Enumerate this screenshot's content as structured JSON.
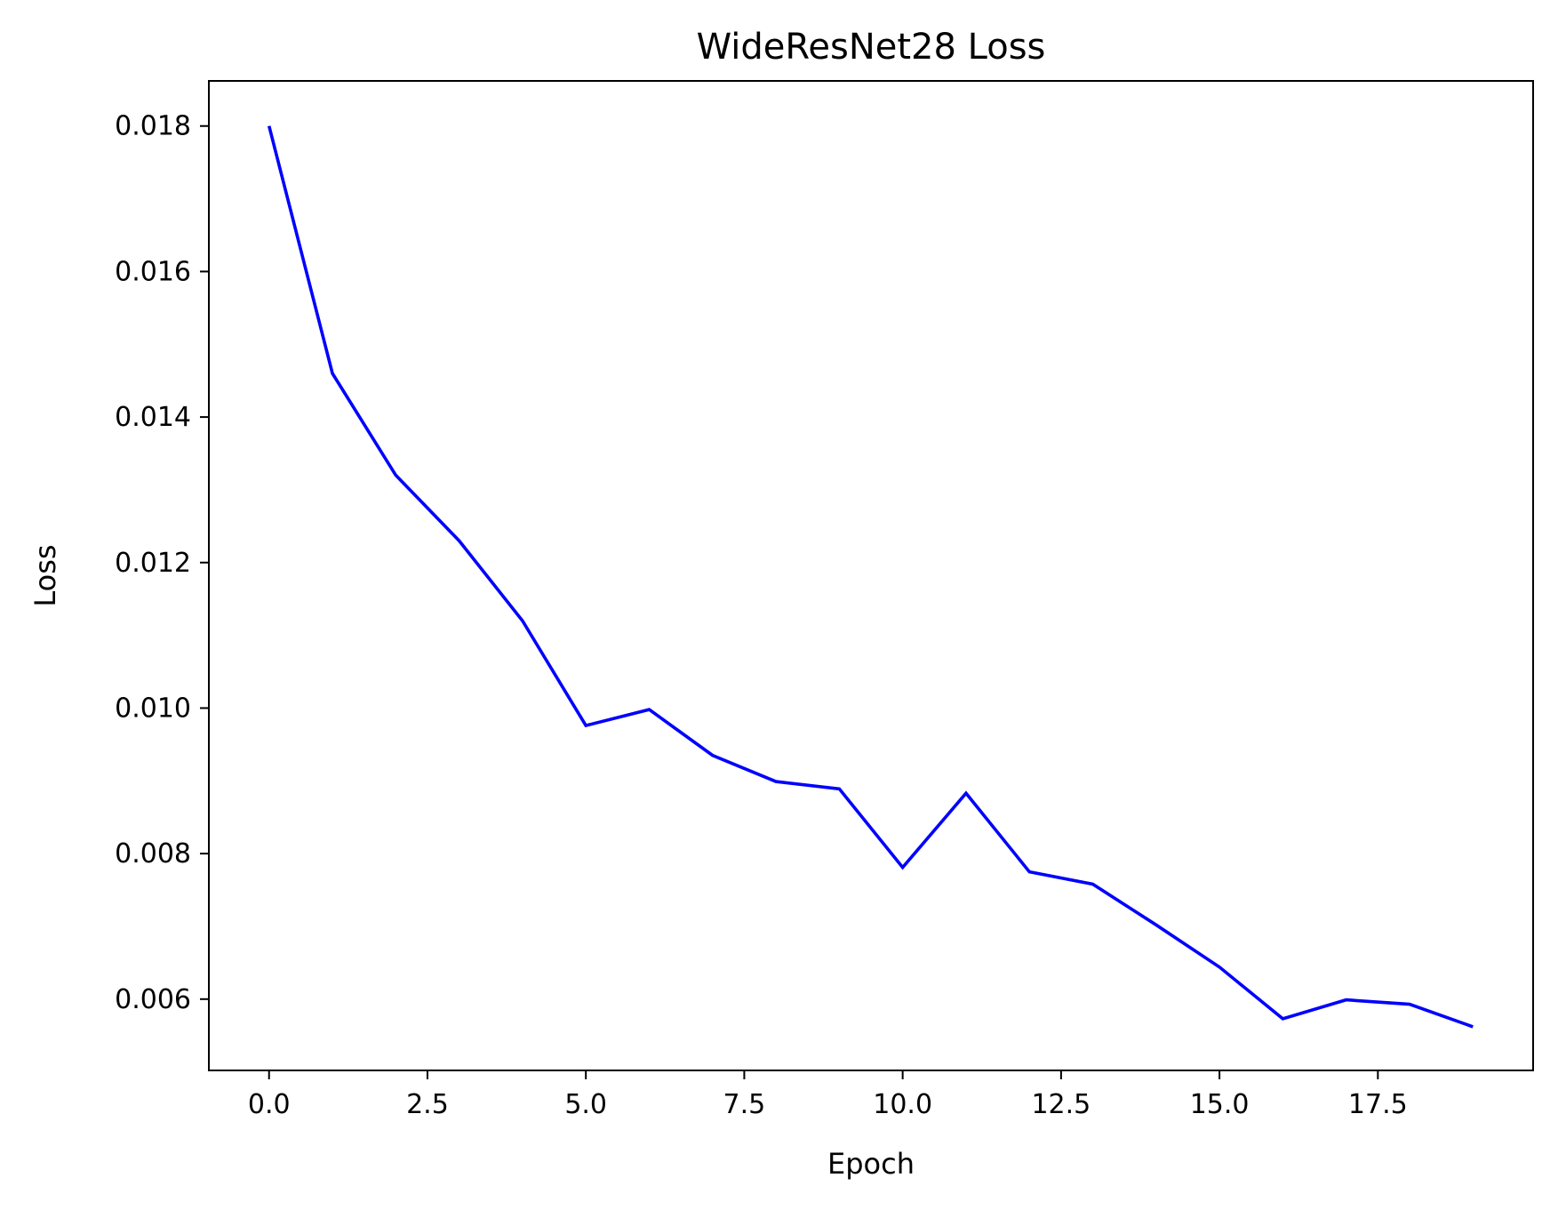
{
  "chart_data": {
    "type": "line",
    "title": "WideResNet28 Loss",
    "xlabel": "Epoch",
    "ylabel": "Loss",
    "x": [
      0,
      1,
      2,
      3,
      4,
      5,
      6,
      7,
      8,
      9,
      10,
      11,
      12,
      13,
      14,
      15,
      16,
      17,
      18,
      19
    ],
    "series": [
      {
        "values": [
          0.018,
          0.0146,
          0.0132,
          0.0123,
          0.0112,
          0.00976,
          0.00998,
          0.00935,
          0.00899,
          0.00889,
          0.00781,
          0.00883,
          0.00775,
          0.00758,
          0.00702,
          0.00644,
          0.00573,
          0.00599,
          0.00593,
          0.00562
        ],
        "color": "#0000ff"
      }
    ],
    "xlim": [
      -0.95,
      19.95
    ],
    "ylim": [
      0.00502,
      0.01862
    ],
    "xticks": [
      0.0,
      2.5,
      5.0,
      7.5,
      10.0,
      12.5,
      15.0,
      17.5
    ],
    "xtick_labels": [
      "0.0",
      "2.5",
      "5.0",
      "7.5",
      "10.0",
      "12.5",
      "15.0",
      "17.5"
    ],
    "yticks": [
      0.006,
      0.008,
      0.01,
      0.012,
      0.014,
      0.016,
      0.018
    ],
    "ytick_labels": [
      "0.006",
      "0.008",
      "0.010",
      "0.012",
      "0.014",
      "0.016",
      "0.018"
    ],
    "grid": false,
    "legend": "none"
  }
}
